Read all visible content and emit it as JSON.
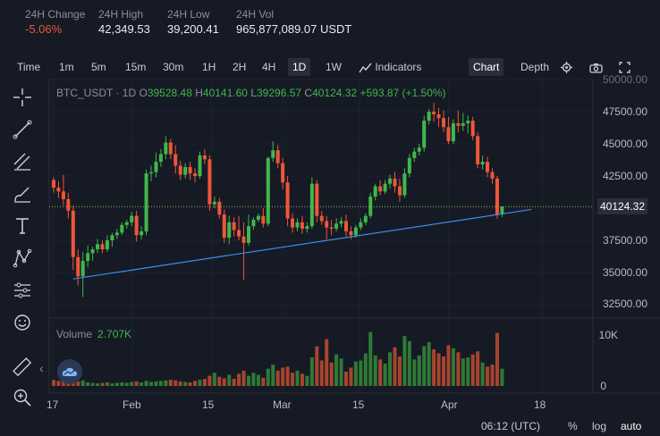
{
  "stats": {
    "change": {
      "label": "24H Change",
      "value": "-5.06%"
    },
    "high": {
      "label": "24H High",
      "value": "42,349.53"
    },
    "low": {
      "label": "24H Low",
      "value": "39,200.41"
    },
    "vol": {
      "label": "24H Vol",
      "value": "965,877,089.07 USDT"
    }
  },
  "toolbar": {
    "time_label": "Time",
    "intervals": [
      "1m",
      "5m",
      "15m",
      "30m",
      "1H",
      "2H",
      "4H",
      "1D",
      "1W"
    ],
    "active_interval": "1D",
    "indicators_label": "Indicators",
    "chart_label": "Chart",
    "depth_label": "Depth"
  },
  "legend": {
    "symbol": "BTC_USDT · 1D",
    "o_key": "O",
    "o_val": "39528.48",
    "h_key": "H",
    "h_val": "40141.60",
    "l_key": "L",
    "l_val": "39296.57",
    "c_key": "C",
    "c_val": "40124.32",
    "change": "+593.87 (+1.50%)"
  },
  "volume": {
    "label": "Volume",
    "value": "2.707K"
  },
  "yaxis": {
    "price_labels": [
      "50000.00",
      "47500.00",
      "45000.00",
      "42500.00",
      "37500.00",
      "35000.00",
      "32500.00"
    ],
    "last_price": "40124.32",
    "vol_labels": [
      "10K",
      "0"
    ]
  },
  "xaxis": {
    "labels": [
      "17",
      "Feb",
      "15",
      "Mar",
      "15",
      "Apr",
      "18"
    ]
  },
  "bottom": {
    "time": "06:12 (UTC)",
    "percent": "%",
    "log": "log",
    "auto": "auto"
  },
  "colors": {
    "up": "#3fb84a",
    "down": "#f0553a",
    "trendline": "#3d8ee8",
    "bg": "#161a25"
  },
  "tools": [
    "crosshair-icon",
    "trend-line-icon",
    "fib-tool-icon",
    "brush-icon",
    "text-icon",
    "pattern-icon",
    "measure-icon",
    "emoji-icon",
    "ruler-icon",
    "zoom-icon"
  ],
  "chart_data": {
    "type": "candlestick",
    "candles": [
      {
        "o": 42200,
        "h": 42400,
        "c": 41600,
        "l": 41200
      },
      {
        "o": 41600,
        "h": 42100,
        "c": 41300,
        "l": 40800
      },
      {
        "o": 41300,
        "h": 42600,
        "c": 40700,
        "l": 40200
      },
      {
        "o": 40700,
        "h": 41200,
        "c": 39800,
        "l": 39200
      },
      {
        "o": 39800,
        "h": 40200,
        "c": 36200,
        "l": 35200
      },
      {
        "o": 36200,
        "h": 36800,
        "c": 34700,
        "l": 34000
      },
      {
        "o": 34700,
        "h": 36600,
        "c": 35900,
        "l": 33100
      },
      {
        "o": 35900,
        "h": 37100,
        "c": 36500,
        "l": 35400
      },
      {
        "o": 36500,
        "h": 37000,
        "c": 36800,
        "l": 35900
      },
      {
        "o": 36800,
        "h": 37600,
        "c": 37200,
        "l": 36500
      },
      {
        "o": 37200,
        "h": 37500,
        "c": 36800,
        "l": 36500
      },
      {
        "o": 36800,
        "h": 37900,
        "c": 37500,
        "l": 36600
      },
      {
        "o": 37500,
        "h": 38100,
        "c": 37900,
        "l": 37000
      },
      {
        "o": 37900,
        "h": 38400,
        "c": 38100,
        "l": 37600
      },
      {
        "o": 38100,
        "h": 38900,
        "c": 38700,
        "l": 37900
      },
      {
        "o": 38700,
        "h": 39100,
        "c": 38900,
        "l": 38400
      },
      {
        "o": 38900,
        "h": 39700,
        "c": 39400,
        "l": 38600
      },
      {
        "o": 39400,
        "h": 39800,
        "c": 37900,
        "l": 37400
      },
      {
        "o": 37900,
        "h": 38600,
        "c": 38200,
        "l": 37600
      },
      {
        "o": 38200,
        "h": 43000,
        "c": 42700,
        "l": 37900
      },
      {
        "o": 42700,
        "h": 43300,
        "c": 42800,
        "l": 42100
      },
      {
        "o": 42800,
        "h": 44300,
        "c": 43600,
        "l": 42400
      },
      {
        "o": 43600,
        "h": 44600,
        "c": 44200,
        "l": 43200
      },
      {
        "o": 44200,
        "h": 45600,
        "c": 45100,
        "l": 43800
      },
      {
        "o": 45100,
        "h": 45400,
        "c": 44200,
        "l": 43800
      },
      {
        "o": 44200,
        "h": 44900,
        "c": 43300,
        "l": 42700
      },
      {
        "o": 43300,
        "h": 43700,
        "c": 42600,
        "l": 42200
      },
      {
        "o": 42600,
        "h": 43500,
        "c": 43200,
        "l": 42300
      },
      {
        "o": 43200,
        "h": 43600,
        "c": 42700,
        "l": 42200
      },
      {
        "o": 42700,
        "h": 43100,
        "c": 42500,
        "l": 42000
      },
      {
        "o": 42500,
        "h": 44400,
        "c": 44100,
        "l": 42300
      },
      {
        "o": 44100,
        "h": 44600,
        "c": 43800,
        "l": 43400
      },
      {
        "o": 43800,
        "h": 44100,
        "c": 40300,
        "l": 39800
      },
      {
        "o": 40300,
        "h": 40900,
        "c": 40500,
        "l": 40000
      },
      {
        "o": 40500,
        "h": 40800,
        "c": 39500,
        "l": 39200
      },
      {
        "o": 39500,
        "h": 39900,
        "c": 37700,
        "l": 37300
      },
      {
        "o": 37700,
        "h": 39400,
        "c": 38900,
        "l": 37200
      },
      {
        "o": 38900,
        "h": 39300,
        "c": 38300,
        "l": 37800
      },
      {
        "o": 38300,
        "h": 39400,
        "c": 37800,
        "l": 37500
      },
      {
        "o": 37800,
        "h": 38900,
        "c": 37300,
        "l": 34400
      },
      {
        "o": 37300,
        "h": 39500,
        "c": 38600,
        "l": 37100
      },
      {
        "o": 38600,
        "h": 39300,
        "c": 39100,
        "l": 38300
      },
      {
        "o": 39100,
        "h": 39600,
        "c": 39400,
        "l": 38900
      },
      {
        "o": 39400,
        "h": 40000,
        "c": 38800,
        "l": 38500
      },
      {
        "o": 38800,
        "h": 44000,
        "c": 43900,
        "l": 38600
      },
      {
        "o": 43900,
        "h": 45200,
        "c": 44500,
        "l": 43600
      },
      {
        "o": 44500,
        "h": 44900,
        "c": 43500,
        "l": 43100
      },
      {
        "o": 43500,
        "h": 43900,
        "c": 42000,
        "l": 41500
      },
      {
        "o": 42000,
        "h": 42500,
        "c": 39200,
        "l": 38600
      },
      {
        "o": 39200,
        "h": 39600,
        "c": 38500,
        "l": 38100
      },
      {
        "o": 38500,
        "h": 39200,
        "c": 38900,
        "l": 38200
      },
      {
        "o": 38900,
        "h": 39400,
        "c": 38400,
        "l": 38000
      },
      {
        "o": 38400,
        "h": 38900,
        "c": 38600,
        "l": 38100
      },
      {
        "o": 38600,
        "h": 42400,
        "c": 41900,
        "l": 38400
      },
      {
        "o": 41900,
        "h": 42200,
        "c": 39400,
        "l": 38900
      },
      {
        "o": 39400,
        "h": 39800,
        "c": 39000,
        "l": 38700
      },
      {
        "o": 39000,
        "h": 39400,
        "c": 38500,
        "l": 37600
      },
      {
        "o": 38500,
        "h": 39100,
        "c": 38400,
        "l": 37900
      },
      {
        "o": 38400,
        "h": 39200,
        "c": 38800,
        "l": 38200
      },
      {
        "o": 38800,
        "h": 39300,
        "c": 39000,
        "l": 38500
      },
      {
        "o": 39000,
        "h": 39500,
        "c": 38200,
        "l": 37800
      },
      {
        "o": 38200,
        "h": 38600,
        "c": 37900,
        "l": 37600
      },
      {
        "o": 37900,
        "h": 38700,
        "c": 38500,
        "l": 37700
      },
      {
        "o": 38500,
        "h": 39200,
        "c": 38900,
        "l": 38300
      },
      {
        "o": 38900,
        "h": 39600,
        "c": 39400,
        "l": 38700
      },
      {
        "o": 39400,
        "h": 41200,
        "c": 40900,
        "l": 39200
      },
      {
        "o": 40900,
        "h": 41900,
        "c": 41700,
        "l": 40600
      },
      {
        "o": 41700,
        "h": 42200,
        "c": 41300,
        "l": 41000
      },
      {
        "o": 41300,
        "h": 42200,
        "c": 41900,
        "l": 41100
      },
      {
        "o": 41900,
        "h": 42600,
        "c": 42300,
        "l": 41500
      },
      {
        "o": 42300,
        "h": 42800,
        "c": 41700,
        "l": 41200
      },
      {
        "o": 41700,
        "h": 42300,
        "c": 41000,
        "l": 40500
      },
      {
        "o": 41000,
        "h": 43100,
        "c": 42700,
        "l": 40800
      },
      {
        "o": 42700,
        "h": 44200,
        "c": 43900,
        "l": 42400
      },
      {
        "o": 43900,
        "h": 44700,
        "c": 44400,
        "l": 43600
      },
      {
        "o": 44400,
        "h": 45000,
        "c": 44700,
        "l": 44100
      },
      {
        "o": 44700,
        "h": 47200,
        "c": 46800,
        "l": 44400
      },
      {
        "o": 46800,
        "h": 47700,
        "c": 47500,
        "l": 46500
      },
      {
        "o": 47500,
        "h": 48200,
        "c": 47300,
        "l": 46700
      },
      {
        "o": 47300,
        "h": 47800,
        "c": 47000,
        "l": 46300
      },
      {
        "o": 47000,
        "h": 47600,
        "c": 46300,
        "l": 45900
      },
      {
        "o": 46300,
        "h": 47100,
        "c": 45200,
        "l": 45000
      },
      {
        "o": 45200,
        "h": 46900,
        "c": 46600,
        "l": 45000
      },
      {
        "o": 46600,
        "h": 47600,
        "c": 46400,
        "l": 45900
      },
      {
        "o": 46400,
        "h": 47400,
        "c": 46600,
        "l": 46000
      },
      {
        "o": 46600,
        "h": 47200,
        "c": 46800,
        "l": 45800
      },
      {
        "o": 46800,
        "h": 47100,
        "c": 45600,
        "l": 45300
      },
      {
        "o": 45600,
        "h": 45900,
        "c": 43400,
        "l": 43100
      },
      {
        "o": 43400,
        "h": 44100,
        "c": 43600,
        "l": 43000
      },
      {
        "o": 43600,
        "h": 44000,
        "c": 42800,
        "l": 42400
      },
      {
        "o": 42800,
        "h": 43100,
        "c": 42300,
        "l": 41900
      },
      {
        "o": 42300,
        "h": 42500,
        "c": 39500,
        "l": 39200
      },
      {
        "o": 39530,
        "h": 40140,
        "c": 40120,
        "l": 39300
      }
    ],
    "volume": [
      1.2,
      1.0,
      2.6,
      1.4,
      0.8,
      0.9,
      1.1,
      0.7,
      0.6,
      0.5,
      0.6,
      0.7,
      0.5,
      0.6,
      0.7,
      0.6,
      0.8,
      0.9,
      0.7,
      1.0,
      0.8,
      0.9,
      1.0,
      1.1,
      1.2,
      1.1,
      0.9,
      0.8,
      0.7,
      1.0,
      1.2,
      1.4,
      2.0,
      2.6,
      1.8,
      1.5,
      2.2,
      1.4,
      2.4,
      3.0,
      2.0,
      2.6,
      2.2,
      1.6,
      3.4,
      4.2,
      3.0,
      3.6,
      3.8,
      2.6,
      3.0,
      2.4,
      2.0,
      5.6,
      7.8,
      5.0,
      9.2,
      4.6,
      6.2,
      5.4,
      2.8,
      3.6,
      4.8,
      5.0,
      6.4,
      10.6,
      6.0,
      5.2,
      4.4,
      6.6,
      7.6,
      5.8,
      9.8,
      8.8,
      5.2,
      6.0,
      7.8,
      8.6,
      7.2,
      6.4,
      5.8,
      8.0,
      7.4,
      6.6,
      5.4,
      5.6,
      6.2,
      6.8,
      4.6,
      3.8,
      4.2,
      10.4,
      3.4
    ],
    "trendline": [
      {
        "i": 4,
        "price": 34500
      },
      {
        "i": 98,
        "price": 39900
      }
    ],
    "ylim": [
      31000,
      50500
    ]
  }
}
